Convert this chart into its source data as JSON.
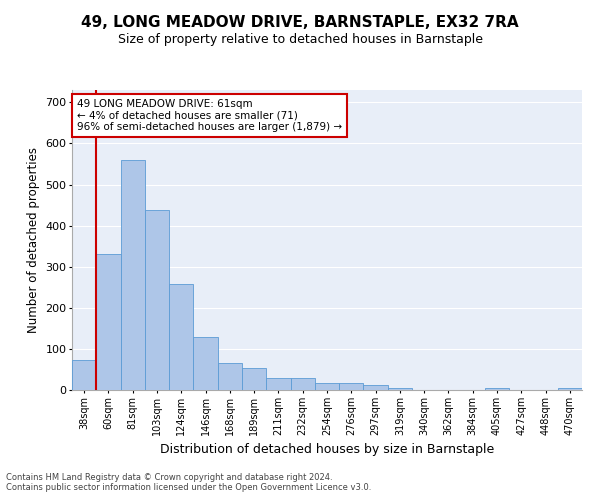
{
  "title": "49, LONG MEADOW DRIVE, BARNSTAPLE, EX32 7RA",
  "subtitle": "Size of property relative to detached houses in Barnstaple",
  "xlabel": "Distribution of detached houses by size in Barnstaple",
  "ylabel": "Number of detached properties",
  "categories": [
    "38sqm",
    "60sqm",
    "81sqm",
    "103sqm",
    "124sqm",
    "146sqm",
    "168sqm",
    "189sqm",
    "211sqm",
    "232sqm",
    "254sqm",
    "276sqm",
    "297sqm",
    "319sqm",
    "340sqm",
    "362sqm",
    "384sqm",
    "405sqm",
    "427sqm",
    "448sqm",
    "470sqm"
  ],
  "values": [
    72,
    330,
    560,
    438,
    257,
    128,
    65,
    54,
    29,
    29,
    17,
    17,
    13,
    6,
    0,
    0,
    0,
    6,
    0,
    0,
    6
  ],
  "bar_color": "#aec6e8",
  "bar_edge_color": "#5b9bd5",
  "vline_x_index": 1,
  "vline_color": "#cc0000",
  "annotation_line1": "49 LONG MEADOW DRIVE: 61sqm",
  "annotation_line2": "← 4% of detached houses are smaller (71)",
  "annotation_line3": "96% of semi-detached houses are larger (1,879) →",
  "annotation_box_color": "#cc0000",
  "ylim": [
    0,
    730
  ],
  "yticks": [
    0,
    100,
    200,
    300,
    400,
    500,
    600,
    700
  ],
  "footer_line1": "Contains HM Land Registry data © Crown copyright and database right 2024.",
  "footer_line2": "Contains public sector information licensed under the Open Government Licence v3.0.",
  "bg_color": "#e8eef8",
  "grid_color": "#ffffff",
  "title_fontsize": 11,
  "subtitle_fontsize": 9,
  "ylabel_fontsize": 8.5,
  "xlabel_fontsize": 9,
  "tick_fontsize": 7,
  "annotation_fontsize": 7.5,
  "footer_fontsize": 6
}
